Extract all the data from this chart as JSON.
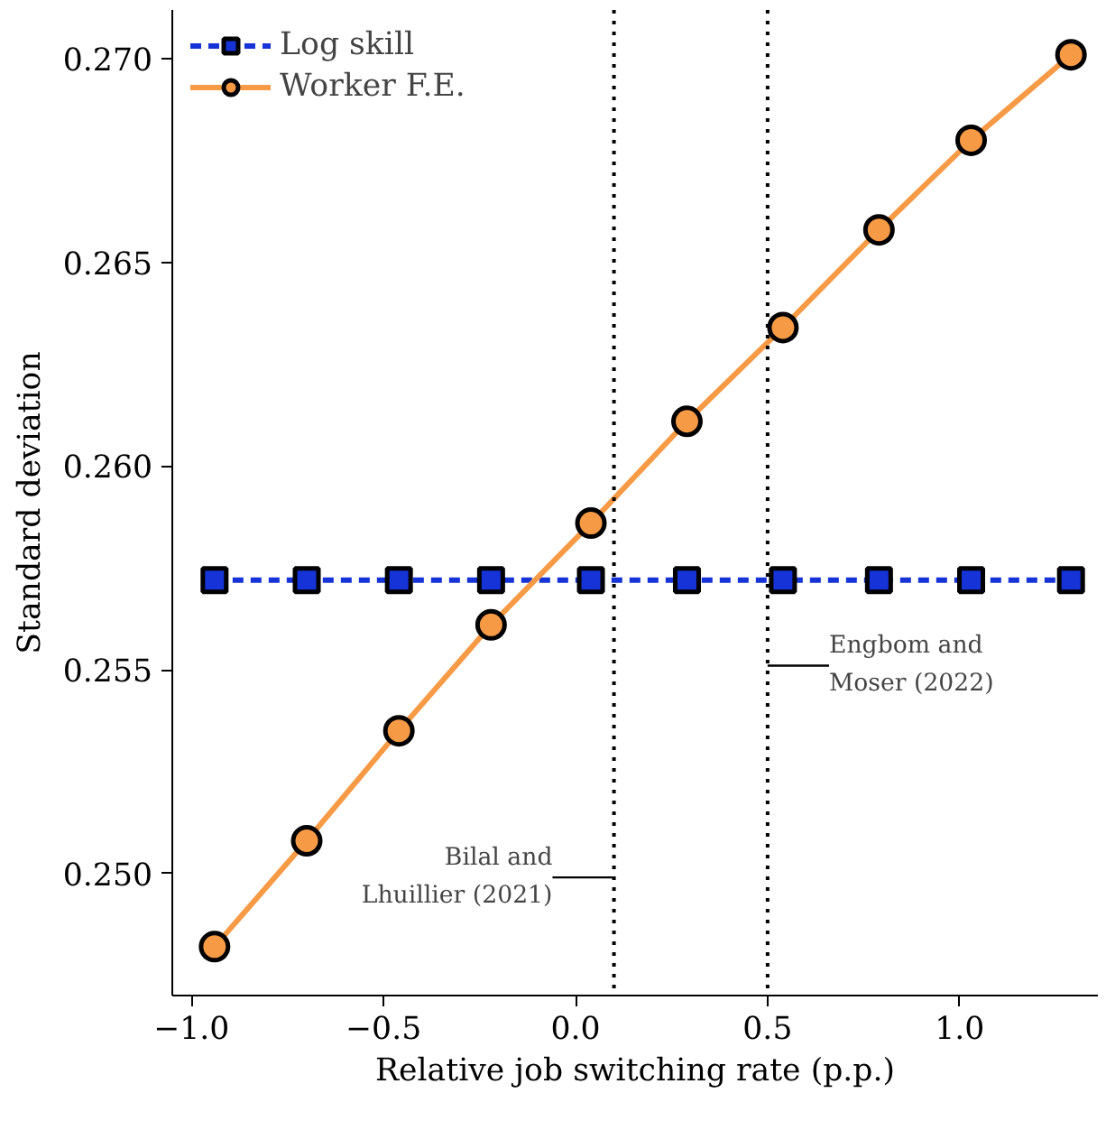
{
  "chart_data": {
    "type": "line",
    "xlabel": "Relative job switching rate (p.p.)",
    "ylabel": "Standard deviation",
    "x": [
      -0.94,
      -0.7,
      -0.46,
      -0.22,
      0.04,
      0.29,
      0.54,
      0.79,
      1.03,
      1.29
    ],
    "series": [
      {
        "name": "Log skill",
        "color": "#1533d6",
        "line_style": "dashed",
        "marker": "square",
        "values": [
          0.2572,
          0.2572,
          0.2572,
          0.2572,
          0.2572,
          0.2572,
          0.2572,
          0.2572,
          0.2572,
          0.2572
        ]
      },
      {
        "name": "Worker F.E.",
        "color": "#f79a45",
        "line_style": "solid",
        "marker": "circle",
        "values": [
          0.2482,
          0.2508,
          0.2535,
          0.2561,
          0.2586,
          0.2611,
          0.2634,
          0.2658,
          0.268,
          0.2701
        ]
      }
    ],
    "xlim": [
      -1.05,
      1.36
    ],
    "ylim": [
      0.247,
      0.2712
    ],
    "xticks": [
      {
        "value": -1.0,
        "label": "−1.0"
      },
      {
        "value": -0.5,
        "label": "−0.5"
      },
      "0.0",
      "0.5",
      "1.0"
    ],
    "yticks": [
      {
        "value": 0.25,
        "label": "0.250"
      },
      {
        "value": 0.255,
        "label": "0.255"
      },
      {
        "value": 0.26,
        "label": "0.260"
      },
      {
        "value": 0.265,
        "label": "0.265"
      },
      {
        "value": 0.27,
        "label": "0.270"
      }
    ],
    "ref_lines": [
      {
        "axis": "x",
        "value": 0.1,
        "color": "#000000",
        "line_style": "dotted"
      },
      {
        "axis": "x",
        "value": 0.5,
        "color": "#000000",
        "line_style": "dotted"
      }
    ],
    "annotations": [
      {
        "text": "Bilal and\nLhuillier (2021)",
        "x": 0.1,
        "y": 0.2499
      },
      {
        "text": "Engbom and\nMoser (2022)",
        "x": 0.5,
        "y": 0.2551
      }
    ],
    "grid": false,
    "legend": "top left"
  }
}
